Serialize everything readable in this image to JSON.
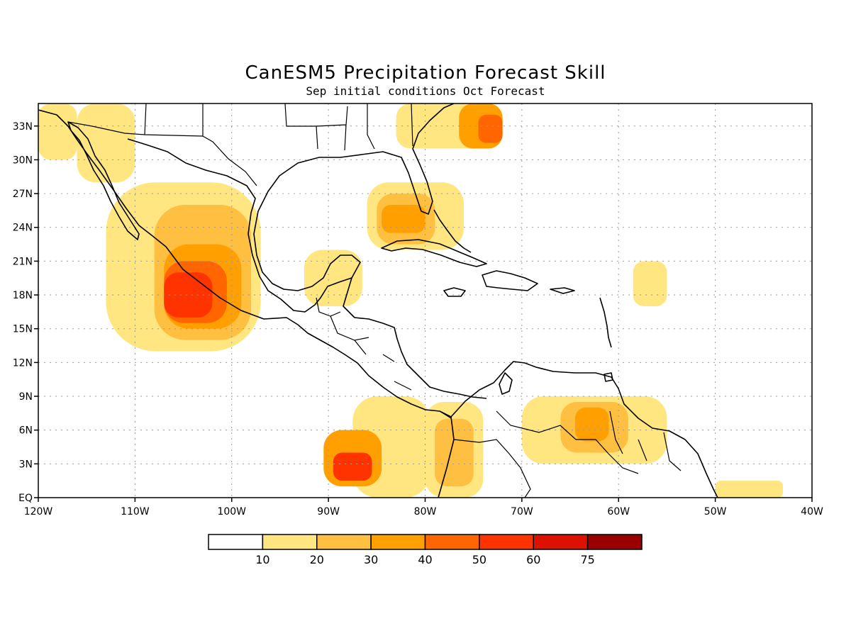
{
  "title": "CanESM5 Precipitation Forecast Skill",
  "subtitle": "Sep initial conditions  Oct Forecast",
  "chart_data": {
    "type": "heatmap",
    "title": "CanESM5 Precipitation Forecast Skill",
    "subtitle": "Sep initial conditions  Oct Forecast",
    "lon_range": [
      -120,
      -40
    ],
    "lat_range": [
      0,
      35
    ],
    "x_ticks": [
      {
        "lon": -120,
        "label": "120W"
      },
      {
        "lon": -110,
        "label": "110W"
      },
      {
        "lon": -100,
        "label": "100W"
      },
      {
        "lon": -90,
        "label": "90W"
      },
      {
        "lon": -80,
        "label": "80W"
      },
      {
        "lon": -70,
        "label": "70W"
      },
      {
        "lon": -60,
        "label": "60W"
      },
      {
        "lon": -50,
        "label": "50W"
      },
      {
        "lon": -40,
        "label": "40W"
      }
    ],
    "y_ticks": [
      {
        "lat": 0,
        "label": "EQ"
      },
      {
        "lat": 3,
        "label": "3N"
      },
      {
        "lat": 6,
        "label": "6N"
      },
      {
        "lat": 9,
        "label": "9N"
      },
      {
        "lat": 12,
        "label": "12N"
      },
      {
        "lat": 15,
        "label": "15N"
      },
      {
        "lat": 18,
        "label": "18N"
      },
      {
        "lat": 21,
        "label": "21N"
      },
      {
        "lat": 24,
        "label": "24N"
      },
      {
        "lat": 27,
        "label": "27N"
      },
      {
        "lat": 30,
        "label": "30N"
      },
      {
        "lat": 33,
        "label": "33N"
      }
    ],
    "grid": true,
    "colorbar": {
      "labels": [
        "10",
        "20",
        "30",
        "40",
        "50",
        "60",
        "75"
      ],
      "colors": [
        "#ffffff",
        "#ffe680",
        "#ffbf40",
        "#ffa000",
        "#ff6600",
        "#ff3300",
        "#dd1100",
        "#9a0000"
      ]
    },
    "skill_regions": [
      {
        "level": 1,
        "lon": [
          -113,
          -97
        ],
        "lat": [
          13,
          28
        ]
      },
      {
        "level": 2,
        "lon": [
          -108,
          -98
        ],
        "lat": [
          14,
          26
        ]
      },
      {
        "level": 3,
        "lon": [
          -107,
          -99
        ],
        "lat": [
          15,
          22.5
        ]
      },
      {
        "level": 4,
        "lon": [
          -107,
          -100.5
        ],
        "lat": [
          15.5,
          21
        ]
      },
      {
        "level": 5,
        "lon": [
          -107,
          -102
        ],
        "lat": [
          16,
          20
        ]
      },
      {
        "level": 1,
        "lon": [
          -87.5,
          -79.5
        ],
        "lat": [
          0,
          9
        ]
      },
      {
        "level": 3,
        "lon": [
          -90.5,
          -84.5
        ],
        "lat": [
          1,
          6
        ]
      },
      {
        "level": 5,
        "lon": [
          -89.5,
          -85.5
        ],
        "lat": [
          1.5,
          4
        ]
      },
      {
        "level": 1,
        "lon": [
          -80,
          -74
        ],
        "lat": [
          0,
          8.5
        ]
      },
      {
        "level": 2,
        "lon": [
          -79,
          -75
        ],
        "lat": [
          1,
          7
        ]
      },
      {
        "level": 1,
        "lon": [
          -70,
          -55
        ],
        "lat": [
          3,
          9
        ]
      },
      {
        "level": 2,
        "lon": [
          -66,
          -59
        ],
        "lat": [
          4,
          8.5
        ]
      },
      {
        "level": 3,
        "lon": [
          -64.5,
          -61
        ],
        "lat": [
          5,
          8
        ]
      },
      {
        "level": 1,
        "lon": [
          -86,
          -76
        ],
        "lat": [
          22,
          28
        ]
      },
      {
        "level": 2,
        "lon": [
          -85,
          -79
        ],
        "lat": [
          22.5,
          27
        ]
      },
      {
        "level": 3,
        "lon": [
          -84.5,
          -80
        ],
        "lat": [
          23.5,
          26
        ]
      },
      {
        "level": 1,
        "lon": [
          -83,
          -72
        ],
        "lat": [
          31,
          35
        ]
      },
      {
        "level": 3,
        "lon": [
          -76.5,
          -72
        ],
        "lat": [
          31,
          35
        ]
      },
      {
        "level": 4,
        "lon": [
          -74.5,
          -72
        ],
        "lat": [
          31.5,
          34
        ]
      },
      {
        "level": 1,
        "lon": [
          -92.5,
          -86.5
        ],
        "lat": [
          17,
          22
        ]
      },
      {
        "level": 1,
        "lon": [
          -58.5,
          -55
        ],
        "lat": [
          17,
          21
        ]
      },
      {
        "level": 1,
        "lon": [
          -116,
          -110
        ],
        "lat": [
          28,
          35
        ]
      },
      {
        "level": 1,
        "lon": [
          -120,
          -116
        ],
        "lat": [
          30,
          35
        ]
      },
      {
        "level": 1,
        "lon": [
          -50,
          -43
        ],
        "lat": [
          0,
          1.5
        ]
      }
    ]
  }
}
